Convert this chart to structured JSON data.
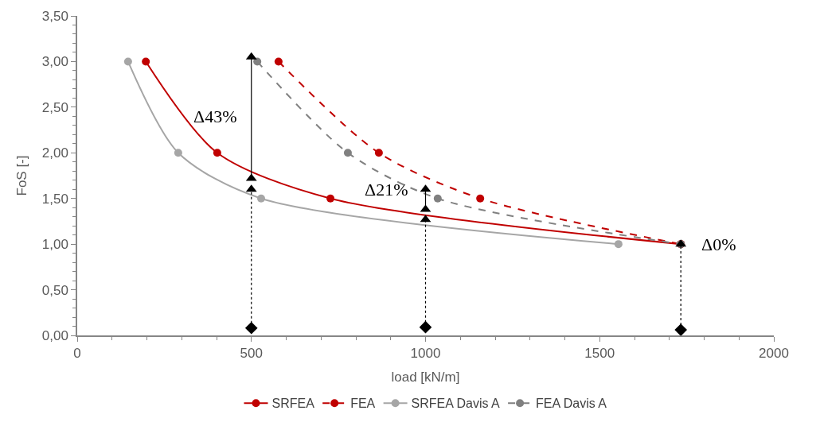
{
  "chart_data": {
    "type": "line",
    "xlabel": "load [kN/m]",
    "ylabel": "FoS [-]",
    "xlim": [
      0,
      2000
    ],
    "xticks": [
      0,
      500,
      1000,
      1500,
      2000
    ],
    "ylim": [
      0,
      3.5
    ],
    "yticks": [
      {
        "value": 0,
        "label": "0,00"
      },
      {
        "value": 0.5,
        "label": "0,50"
      },
      {
        "value": 1,
        "label": "1,00"
      },
      {
        "value": 1.5,
        "label": "1,50"
      },
      {
        "value": 2,
        "label": "2,00"
      },
      {
        "value": 2.5,
        "label": "2,50"
      },
      {
        "value": 3,
        "label": "3,00"
      },
      {
        "value": 3.5,
        "label": "3,50"
      }
    ],
    "legend": "bottom",
    "marker": "circle",
    "series": [
      {
        "name": "SRFEA",
        "color": "#c00000",
        "x": [
          197,
          402,
          727,
          1733
        ],
        "values": [
          3.0,
          2.0,
          1.5,
          1.0
        ],
        "line_style": "solid"
      },
      {
        "name": "FEA",
        "color": "#c00000",
        "x": [
          578,
          866,
          1157,
          1733
        ],
        "values": [
          3.0,
          2.0,
          1.5,
          1.0
        ],
        "line_style": "dashed"
      },
      {
        "name": "SRFEA Davis A",
        "color": "#a6a6a6",
        "x": [
          146,
          290,
          528,
          1554
        ],
        "values": [
          3.0,
          2.0,
          1.5,
          1.0
        ],
        "line_style": "solid"
      },
      {
        "name": "FEA Davis A",
        "color": "#808080",
        "x": [
          517,
          777,
          1035,
          1733
        ],
        "values": [
          3.0,
          2.0,
          1.5,
          1.0
        ],
        "line_style": "dashed"
      },
      {
        "color": "#000000",
        "x": [
          500,
          500
        ],
        "values": [
          1.75,
          3.05
        ],
        "line_style": "solid",
        "marker": "none"
      },
      {
        "color": "#000000",
        "x": [
          1000,
          1000
        ],
        "values": [
          1.38,
          1.6
        ],
        "line_style": "solid",
        "marker": "none"
      },
      {
        "color": "#000000",
        "x": [
          500,
          500
        ],
        "values": [
          0.08,
          1.6
        ],
        "line_style": "dotted",
        "marker": "none"
      },
      {
        "color": "#000000",
        "x": [
          1000,
          1000
        ],
        "values": [
          0.09,
          1.27
        ],
        "line_style": "dotted",
        "marker": "none"
      },
      {
        "color": "#000000",
        "x": [
          1733,
          1733
        ],
        "values": [
          0.06,
          1.0
        ],
        "line_style": "dotted",
        "marker": "none"
      },
      {
        "type": "scatter",
        "color": "#000000",
        "x": [
          500,
          500,
          500,
          1000,
          1000,
          1000,
          1733
        ],
        "values": [
          3.05,
          1.72,
          1.6,
          1.6,
          1.38,
          1.27,
          1.0
        ],
        "marker": "triangle"
      },
      {
        "type": "scatter",
        "color": "#000000",
        "x": [
          500,
          1000,
          1733
        ],
        "values": [
          0.08,
          0.09,
          0.06
        ],
        "marker": "diamond"
      }
    ],
    "annotations": [
      {
        "text": "Δ43%",
        "x": 500,
        "y": 2.4
      },
      {
        "text": "Δ21%",
        "x": 1000,
        "y": 1.6
      },
      {
        "text": "Δ0%",
        "x": 1733,
        "y": 1.0
      }
    ]
  }
}
